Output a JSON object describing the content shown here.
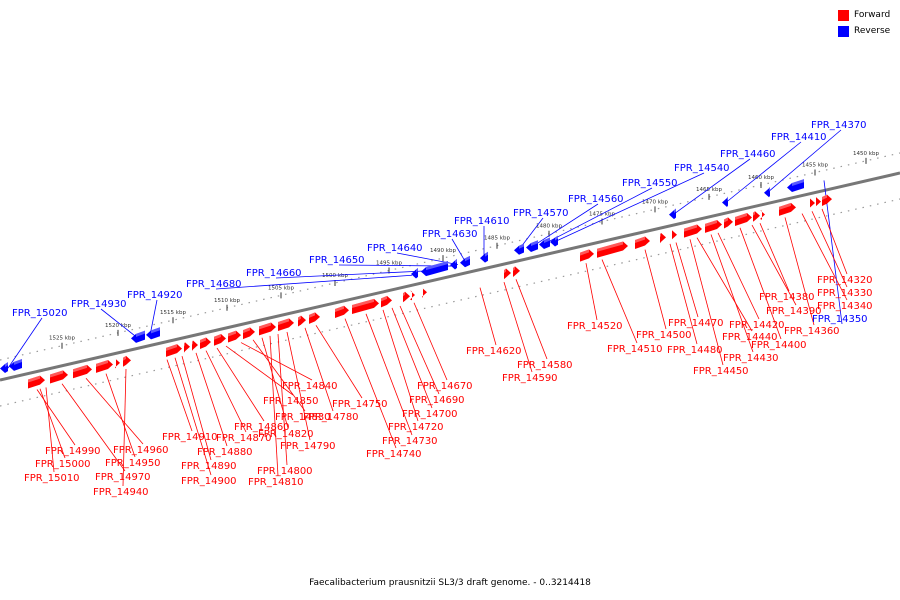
{
  "legend": {
    "forward_label": "Forward",
    "reverse_label": "Reverse",
    "forward_color": "#ff0000",
    "reverse_color": "#0000ff"
  },
  "caption": "Faecalibacterium prausnitzii SL3/3 draft genome. - 0..3214418",
  "scale_ticks": [
    "1525 kbp",
    "1520 kbp",
    "1515 kbp",
    "1510 kbp",
    "1505 kbp",
    "1500 kbp",
    "1495 kbp",
    "1490 kbp",
    "1485 kbp",
    "1480 kbp",
    "1475 kbp",
    "1470 kbp",
    "1465 kbp",
    "1460 kbp",
    "1455 kbp",
    "1450 kbp"
  ],
  "reverse_genes": [
    "FPR_15020",
    "FPR_14930",
    "FPR_14920",
    "FPR_14680",
    "FPR_14660",
    "FPR_14650",
    "FPR_14640",
    "FPR_14630",
    "FPR_14610",
    "FPR_14570",
    "FPR_14560",
    "FPR_14550",
    "FPR_14540",
    "FPR_14460",
    "FPR_14410",
    "FPR_14370",
    "FPR_14350"
  ],
  "forward_genes": [
    "FPR_14990",
    "FPR_15000",
    "FPR_15010",
    "FPR_14970",
    "FPR_14960",
    "FPR_14950",
    "FPR_14940",
    "FPR_14910",
    "FPR_14900",
    "FPR_14890",
    "FPR_14880",
    "FPR_14870",
    "FPR_14860",
    "FPR_14850",
    "FPR_14840",
    "FPR_14830",
    "FPR_14820",
    "FPR_14810",
    "FPR_14800",
    "FPR_14790",
    "FPR_14780",
    "FPR_14750",
    "FPR_14740",
    "FPR_14730",
    "FPR_14720",
    "FPR_14700",
    "FPR_14690",
    "FPR_14670",
    "FPR_14620",
    "FPR_14590",
    "FPR_14580",
    "FPR_14520",
    "FPR_14510",
    "FPR_14500",
    "FPR_14480",
    "FPR_14470",
    "FPR_14450",
    "FPR_14440",
    "FPR_14430",
    "FPR_14420",
    "FPR_14400",
    "FPR_14390",
    "FPR_14380",
    "FPR_14360",
    "FPR_14340",
    "FPR_14330",
    "FPR_14320"
  ]
}
